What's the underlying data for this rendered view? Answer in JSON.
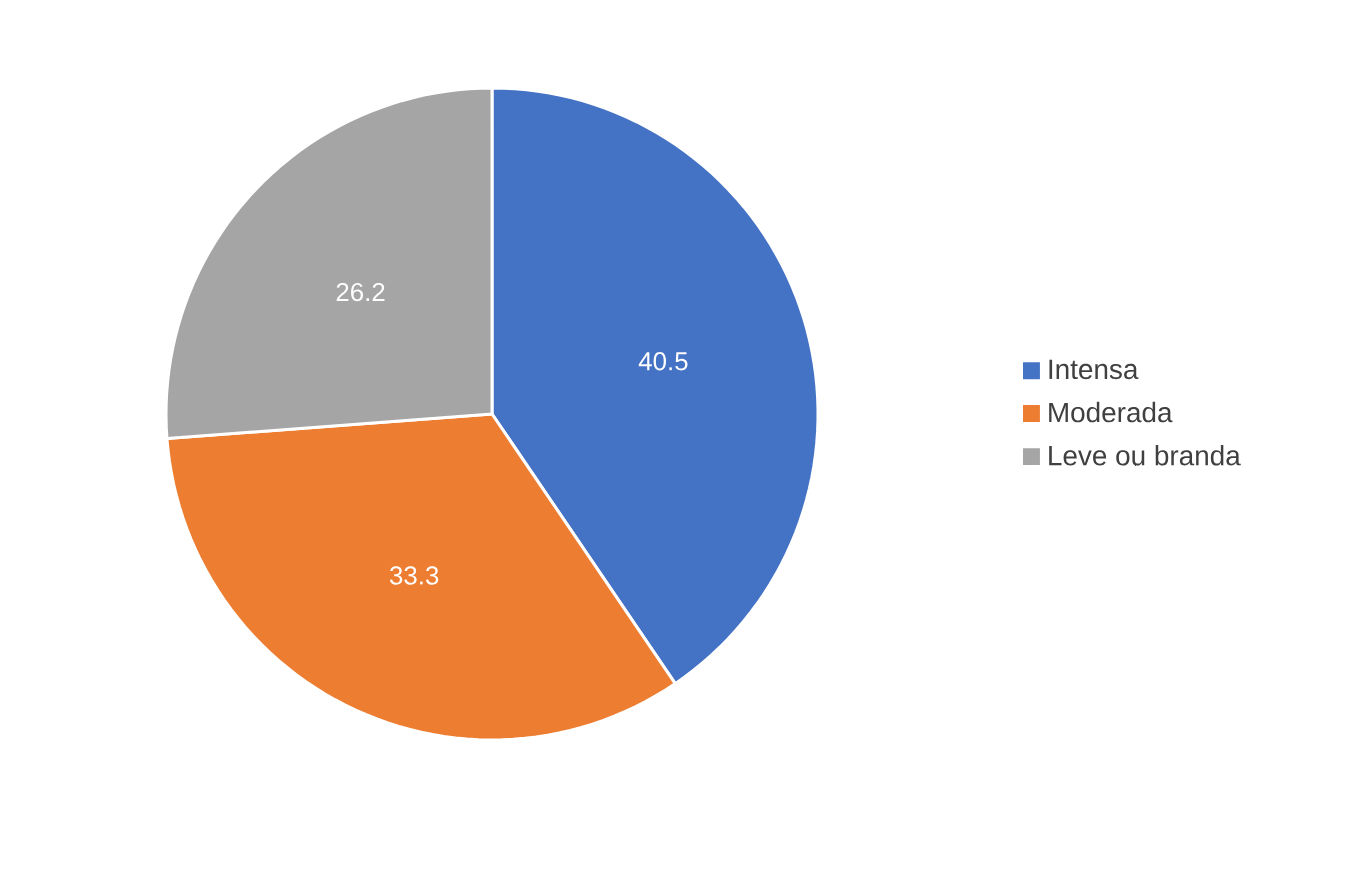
{
  "chart_data": {
    "type": "pie",
    "categories": [
      "Intensa",
      "Moderada",
      "Leve ou branda"
    ],
    "values": [
      40.5,
      33.3,
      26.2
    ],
    "colors": [
      "#4472c4",
      "#ed7d31",
      "#a5a5a5"
    ],
    "data_labels": true,
    "legend": "right"
  }
}
